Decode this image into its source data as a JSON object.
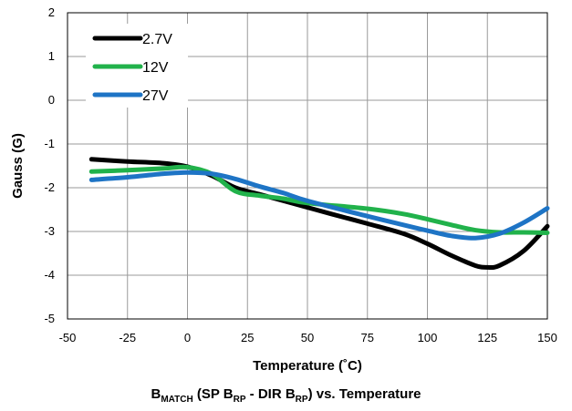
{
  "chart_data": {
    "type": "line",
    "xlabel": "Temperature (˚C)",
    "ylabel": "Gauss (G)",
    "xlim": [
      -50,
      150
    ],
    "ylim": [
      -5,
      2
    ],
    "xticks": [
      -50,
      -25,
      0,
      25,
      50,
      75,
      100,
      125,
      150
    ],
    "yticks": [
      -5,
      -4,
      -3,
      -2,
      -1,
      0,
      1,
      2
    ],
    "grid": true,
    "legend_position": "top-left",
    "series": [
      {
        "name": "2.7V",
        "color": "#000000",
        "points": [
          [
            -40,
            -1.35
          ],
          [
            -25,
            -1.4
          ],
          [
            -10,
            -1.44
          ],
          [
            0,
            -1.52
          ],
          [
            10,
            -1.72
          ],
          [
            20,
            -2.0
          ],
          [
            30,
            -2.15
          ],
          [
            40,
            -2.3
          ],
          [
            50,
            -2.45
          ],
          [
            60,
            -2.6
          ],
          [
            75,
            -2.82
          ],
          [
            90,
            -3.05
          ],
          [
            100,
            -3.28
          ],
          [
            110,
            -3.55
          ],
          [
            120,
            -3.78
          ],
          [
            125,
            -3.82
          ],
          [
            130,
            -3.78
          ],
          [
            140,
            -3.45
          ],
          [
            150,
            -2.88
          ]
        ]
      },
      {
        "name": "12V",
        "color": "#21b24b",
        "points": [
          [
            -40,
            -1.63
          ],
          [
            -25,
            -1.6
          ],
          [
            -10,
            -1.56
          ],
          [
            0,
            -1.53
          ],
          [
            10,
            -1.68
          ],
          [
            20,
            -2.08
          ],
          [
            30,
            -2.18
          ],
          [
            40,
            -2.25
          ],
          [
            50,
            -2.35
          ],
          [
            75,
            -2.48
          ],
          [
            90,
            -2.6
          ],
          [
            100,
            -2.72
          ],
          [
            110,
            -2.85
          ],
          [
            120,
            -2.97
          ],
          [
            130,
            -3.02
          ],
          [
            140,
            -3.02
          ],
          [
            150,
            -3.03
          ]
        ]
      },
      {
        "name": "27V",
        "color": "#1e74c5",
        "points": [
          [
            -40,
            -1.82
          ],
          [
            -25,
            -1.76
          ],
          [
            -10,
            -1.68
          ],
          [
            0,
            -1.65
          ],
          [
            10,
            -1.68
          ],
          [
            20,
            -1.8
          ],
          [
            30,
            -1.97
          ],
          [
            40,
            -2.12
          ],
          [
            50,
            -2.3
          ],
          [
            75,
            -2.65
          ],
          [
            90,
            -2.85
          ],
          [
            100,
            -2.98
          ],
          [
            110,
            -3.1
          ],
          [
            120,
            -3.15
          ],
          [
            130,
            -3.05
          ],
          [
            140,
            -2.8
          ],
          [
            150,
            -2.47
          ]
        ]
      }
    ],
    "caption": {
      "main": "B",
      "main_sub": "MATCH",
      "part1": " (SP B",
      "part1_sub": "RP",
      "part2": " - DIR B",
      "part2_sub": "RP",
      "part3": ") vs. Temperature"
    }
  }
}
